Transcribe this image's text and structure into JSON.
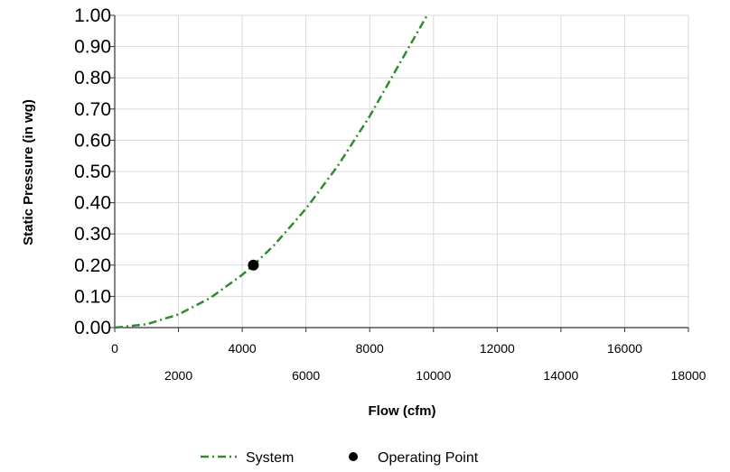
{
  "chart_data": {
    "type": "line",
    "xlabel": "Flow (cfm)",
    "ylabel": "Static Pressure (in wg)",
    "xlim": [
      0,
      18000
    ],
    "ylim": [
      0,
      1.0
    ],
    "x_ticks": [
      "0",
      "2000",
      "4000",
      "6000",
      "8000",
      "10000",
      "12000",
      "14000",
      "16000",
      "18000"
    ],
    "y_ticks": [
      "0.00",
      "0.10",
      "0.20",
      "0.30",
      "0.40",
      "0.50",
      "0.60",
      "0.70",
      "0.80",
      "0.90",
      "1.00"
    ],
    "grid": true,
    "legend_position": "bottom",
    "series": [
      {
        "name": "System",
        "style": "dash-dot",
        "color": "#2e8b2e",
        "x": [
          0,
          1000,
          2000,
          3000,
          4000,
          4350,
          5000,
          6000,
          7000,
          8000,
          9000,
          9800
        ],
        "y": [
          0.0,
          0.0106,
          0.0423,
          0.0951,
          0.169,
          0.2,
          0.264,
          0.381,
          0.518,
          0.677,
          0.857,
          1.0
        ]
      },
      {
        "name": "Operating Point",
        "style": "marker",
        "color": "#000000",
        "x": [
          4350
        ],
        "y": [
          0.2
        ]
      }
    ]
  }
}
